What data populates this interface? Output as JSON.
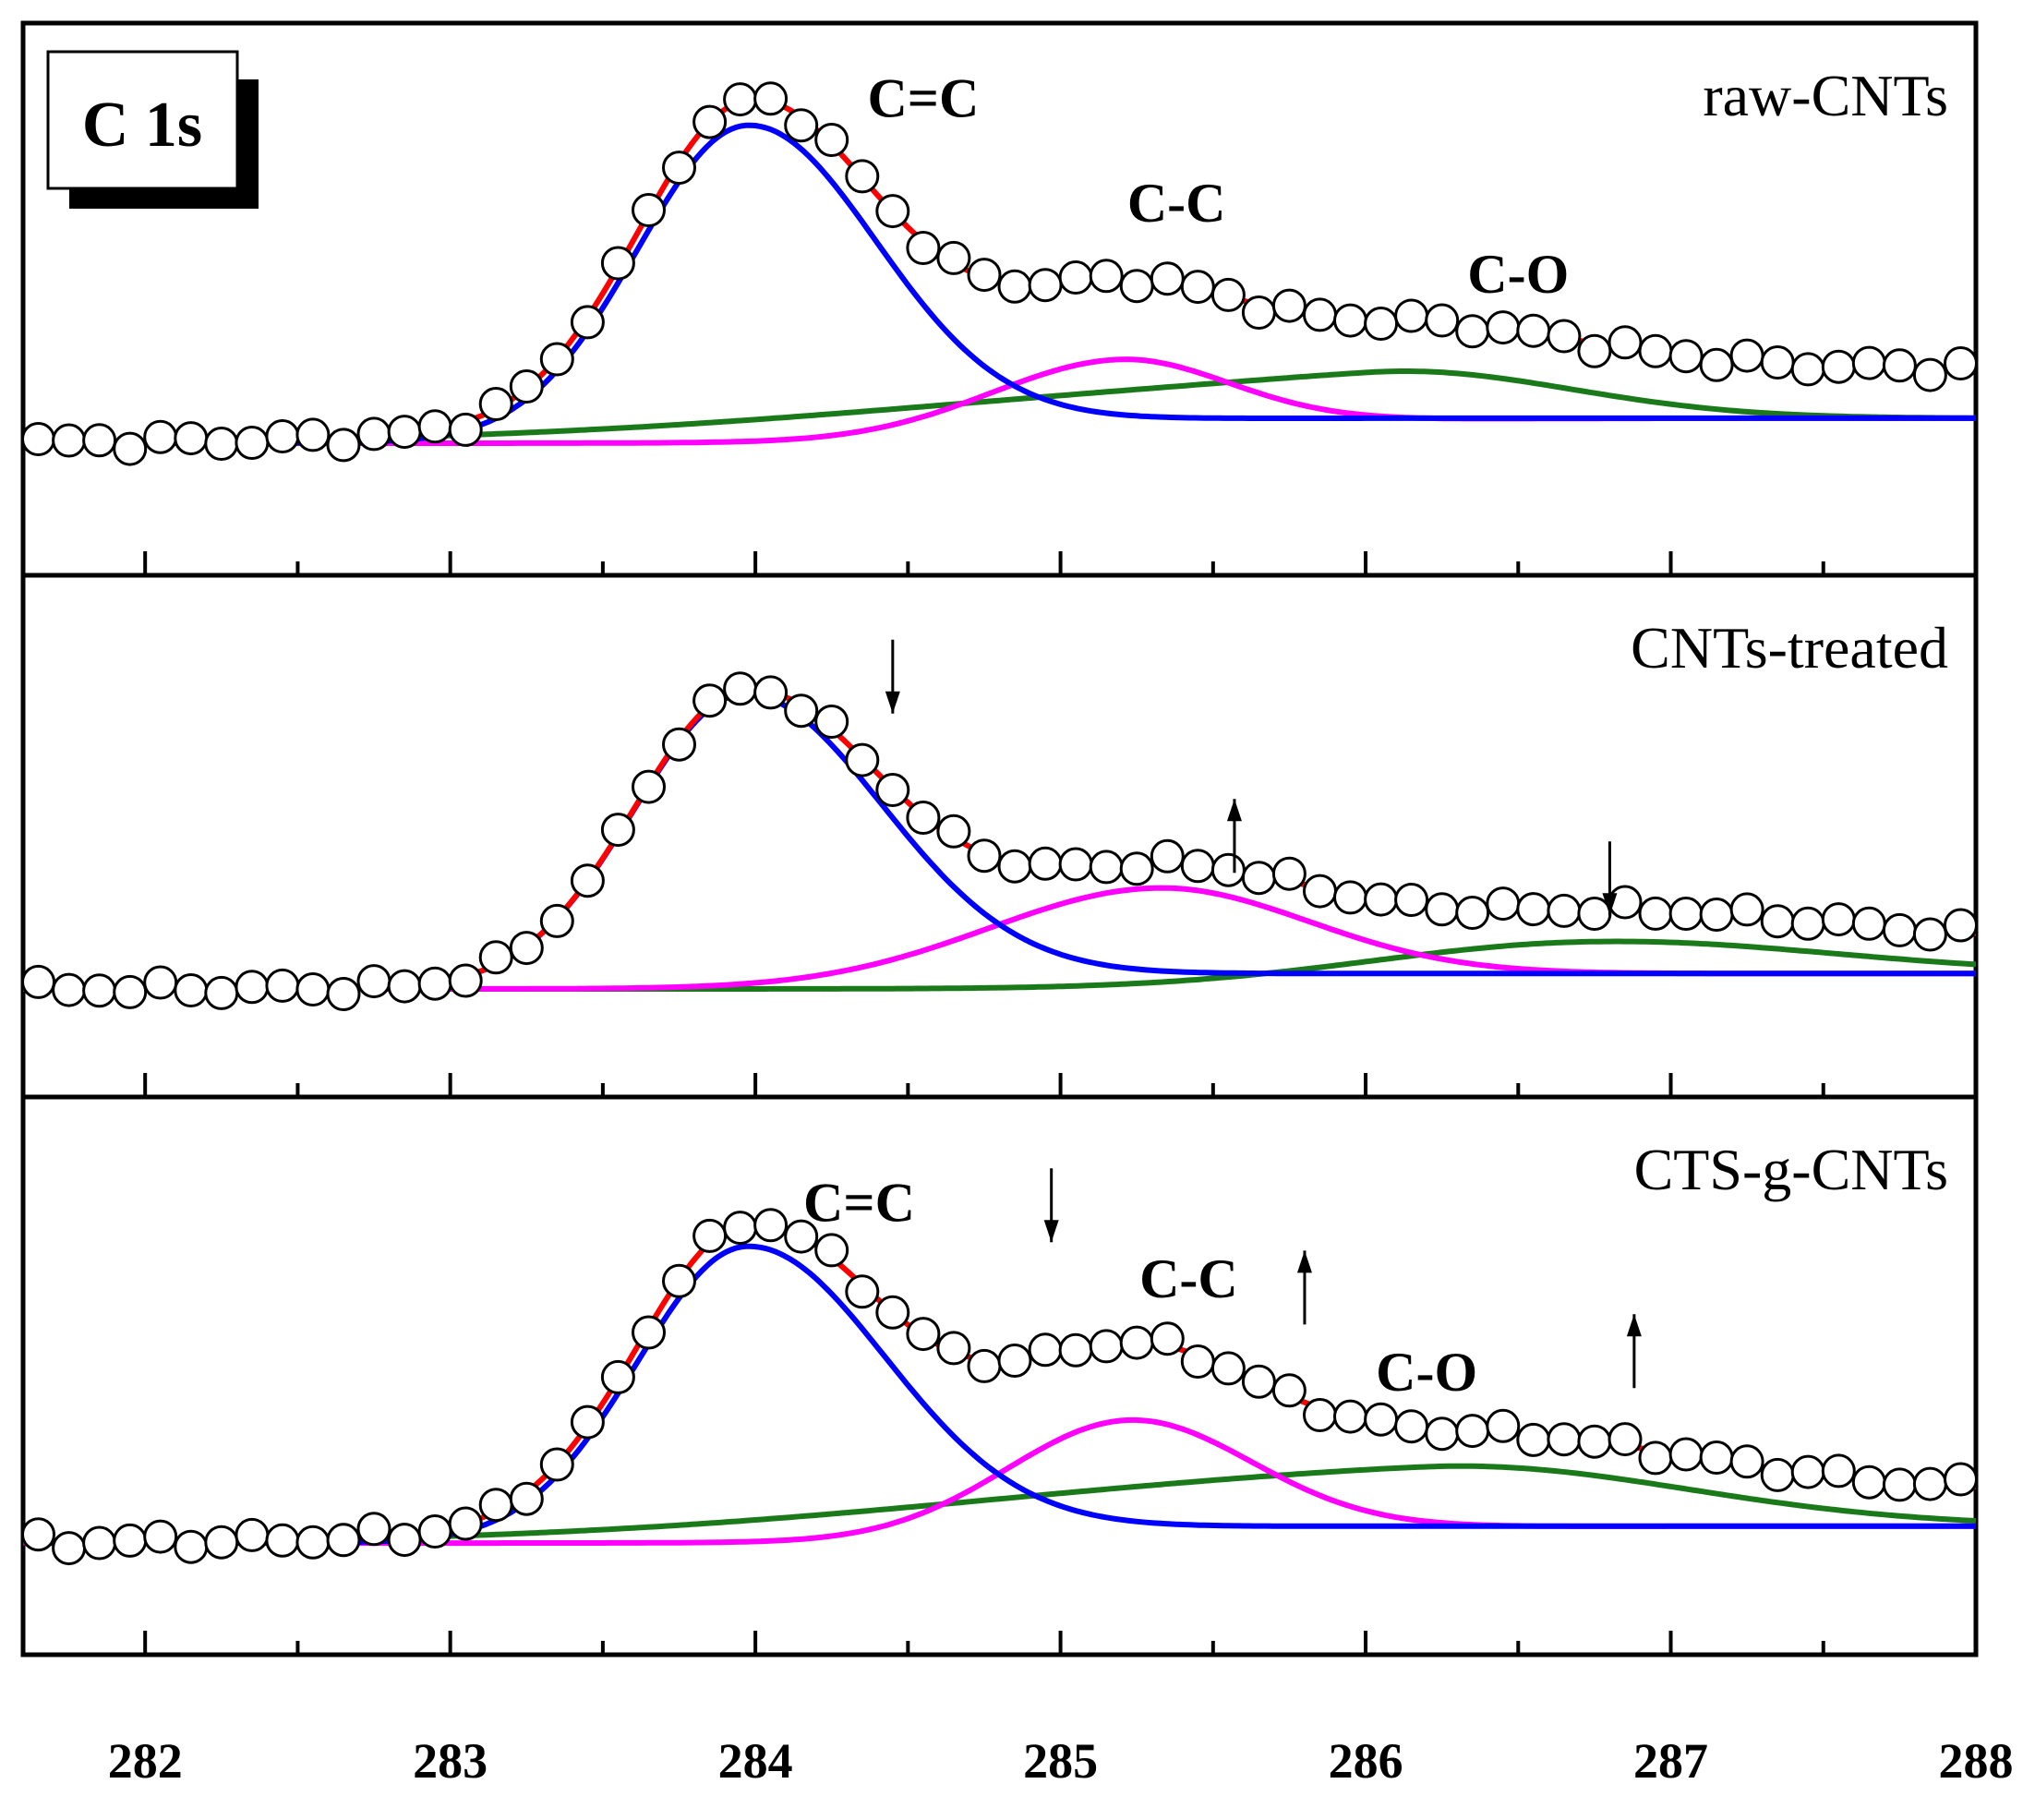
{
  "chart_data": {
    "type": "line",
    "title": "C 1s",
    "xlabel": "",
    "ylabel": "",
    "xlim": [
      281.6,
      288.0
    ],
    "x_ticks": [
      "282",
      "283",
      "284",
      "285",
      "286",
      "287",
      "288"
    ],
    "x_tick_values": [
      282,
      283,
      284,
      285,
      286,
      287,
      288
    ],
    "series_colors": {
      "data": "#000000",
      "fit_total": "#ff0000",
      "C=C": "#0000ff",
      "C-C": "#ff00ff",
      "C-O": "#1a7a1a"
    },
    "panels": [
      {
        "label": "raw-CNTs",
        "ylim": [
          0,
          1
        ],
        "baseline": 0.15,
        "data_note": "open circles = measured spectrum; red = total fit",
        "components": [
          {
            "name": "C=C",
            "center": 283.97,
            "amplitude": 0.73,
            "sigma_left": 0.36,
            "sigma_right": 0.42,
            "floor": 0.15,
            "floor_after": 0.21
          },
          {
            "name": "C-C",
            "center": 285.18,
            "amplitude": 0.17,
            "sigma_left": 0.42,
            "sigma_right": 0.36,
            "floor": 0.15,
            "floor_after": 0.21
          },
          {
            "name": "C-O",
            "center": 286.02,
            "amplitude": 0.14,
            "sigma_left": 1.5,
            "sigma_right": 0.6,
            "floor": 0.15,
            "floor_after": 0.21
          }
        ],
        "peak_labels": [
          {
            "text": "C=C",
            "x": 284.55,
            "y": 0.93
          },
          {
            "text": "C-C",
            "x": 285.38,
            "y": 0.68
          },
          {
            "text": "C-O",
            "x": 286.5,
            "y": 0.51
          }
        ],
        "arrows": []
      },
      {
        "label": "CNTs-treated",
        "ylim": [
          0,
          1
        ],
        "baseline": 0.1,
        "data_note": "open circles = measured spectrum; red = total fit",
        "components": [
          {
            "name": "C=C",
            "center": 283.96,
            "amplitude": 0.74,
            "sigma_left": 0.36,
            "sigma_right": 0.45,
            "floor": 0.1,
            "floor_after": 0.14
          },
          {
            "name": "C-C",
            "center": 285.3,
            "amplitude": 0.24,
            "sigma_left": 0.55,
            "sigma_right": 0.5,
            "floor": 0.1,
            "floor_after": 0.14
          },
          {
            "name": "C-O",
            "center": 286.65,
            "amplitude": 0.1,
            "sigma_left": 0.7,
            "sigma_right": 0.8,
            "floor": 0.1,
            "floor_after": 0.14
          }
        ],
        "peak_labels": [],
        "arrows": [
          {
            "direction": "down",
            "x": 284.45,
            "y_tip": 0.81
          },
          {
            "direction": "up",
            "x": 285.57,
            "y_tip": 0.59
          },
          {
            "direction": "down",
            "x": 286.8,
            "y_tip": 0.29
          }
        ]
      },
      {
        "label": "CTS-g-CNTs",
        "ylim": [
          0,
          1
        ],
        "baseline": 0.1,
        "data_note": "open circles = measured spectrum; red = total fit",
        "components": [
          {
            "name": "C=C",
            "center": 283.97,
            "amplitude": 0.68,
            "sigma_left": 0.36,
            "sigma_right": 0.45,
            "floor": 0.1,
            "floor_after": 0.14
          },
          {
            "name": "C-C",
            "center": 285.22,
            "amplitude": 0.27,
            "sigma_left": 0.4,
            "sigma_right": 0.4,
            "floor": 0.1,
            "floor_after": 0.14
          },
          {
            "name": "C-O",
            "center": 286.2,
            "amplitude": 0.16,
            "sigma_left": 1.5,
            "sigma_right": 0.8,
            "floor": 0.1,
            "floor_after": 0.14
          }
        ],
        "peak_labels": [
          {
            "text": "C=C",
            "x": 284.34,
            "y": 0.86
          },
          {
            "text": "C-C",
            "x": 285.42,
            "y": 0.68
          },
          {
            "text": "C-O",
            "x": 286.2,
            "y": 0.46
          }
        ],
        "arrows": [
          {
            "direction": "down",
            "x": 284.97,
            "y_tip": 0.81
          },
          {
            "direction": "up",
            "x": 285.8,
            "y_tip": 0.79
          },
          {
            "direction": "up",
            "x": 286.88,
            "y_tip": 0.64
          }
        ]
      }
    ]
  }
}
